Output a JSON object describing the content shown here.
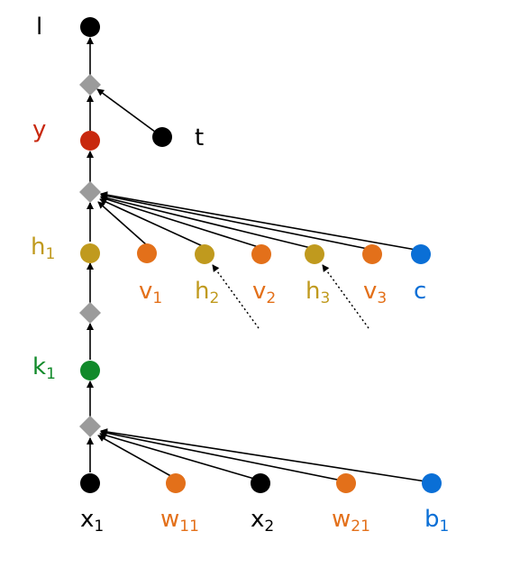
{
  "colors": {
    "black": "#000000",
    "red": "#c8280e",
    "olive": "#c09a1e",
    "orange": "#e3701a",
    "blue": "#0a6fd6",
    "green": "#118a2a",
    "gray": "#9b9b9b"
  },
  "labels": {
    "l": "l",
    "t": "t",
    "y": "y",
    "h1": {
      "base": "h",
      "sub": "1"
    },
    "v1": {
      "base": "v",
      "sub": "1"
    },
    "h2": {
      "base": "h",
      "sub": "2"
    },
    "v2": {
      "base": "v",
      "sub": "2"
    },
    "h3": {
      "base": "h",
      "sub": "3"
    },
    "v3": {
      "base": "v",
      "sub": "3"
    },
    "c": "c",
    "k1": {
      "base": "k",
      "sub": "1"
    },
    "x1": {
      "base": "x",
      "sub": "1"
    },
    "w11": {
      "base": "w",
      "sub": "11"
    },
    "x2": {
      "base": "x",
      "sub": "2"
    },
    "w21": {
      "base": "w",
      "sub": "21"
    },
    "b1": {
      "base": "b",
      "sub": "1"
    }
  }
}
